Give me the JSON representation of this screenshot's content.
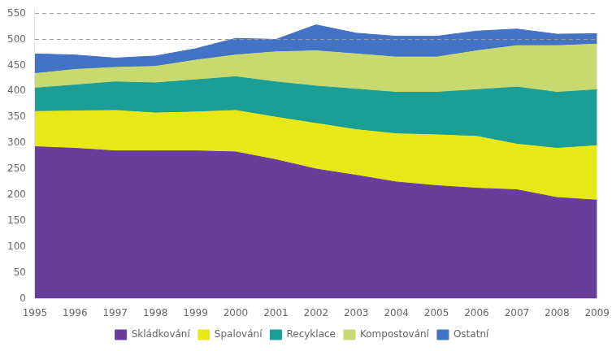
{
  "chart_data": {
    "type": "area",
    "stacked": true,
    "x": [
      1995,
      1996,
      1997,
      1998,
      1999,
      2000,
      2001,
      2002,
      2003,
      2004,
      2005,
      2006,
      2007,
      2008,
      2009
    ],
    "xlim": [
      1995,
      2009
    ],
    "xticks": [
      1995,
      1996,
      1997,
      1998,
      1999,
      2000,
      2001,
      2002,
      2003,
      2004,
      2005,
      2006,
      2007,
      2008,
      2009
    ],
    "ylim": [
      0,
      560
    ],
    "yticks": [
      0,
      50,
      100,
      150,
      200,
      250,
      300,
      350,
      400,
      450,
      500,
      550
    ],
    "grid": false,
    "legend": "bottom",
    "hlines": [
      500,
      550
    ],
    "series": [
      {
        "name": "Skládkování",
        "color": "#6a3d9a",
        "values": [
          293,
          290,
          285,
          285,
          285,
          283,
          268,
          250,
          238,
          225,
          218,
          213,
          210,
          195,
          190
        ]
      },
      {
        "name": "Spalování",
        "color": "#e8e817",
        "values": [
          68,
          72,
          78,
          73,
          75,
          80,
          82,
          88,
          88,
          93,
          98,
          100,
          88,
          95,
          105
        ]
      },
      {
        "name": "Recyklace",
        "color": "#1a9e96",
        "values": [
          45,
          50,
          55,
          58,
          62,
          65,
          68,
          72,
          78,
          80,
          82,
          90,
          110,
          108,
          108
        ]
      },
      {
        "name": "Kompostování",
        "color": "#c8d96f",
        "values": [
          28,
          30,
          28,
          32,
          38,
          42,
          58,
          68,
          68,
          68,
          68,
          75,
          80,
          90,
          88
        ]
      },
      {
        "name": "Ostatní",
        "color": "#4472c4",
        "values": [
          38,
          28,
          18,
          20,
          22,
          32,
          24,
          50,
          40,
          40,
          40,
          38,
          32,
          22,
          20
        ]
      }
    ]
  }
}
